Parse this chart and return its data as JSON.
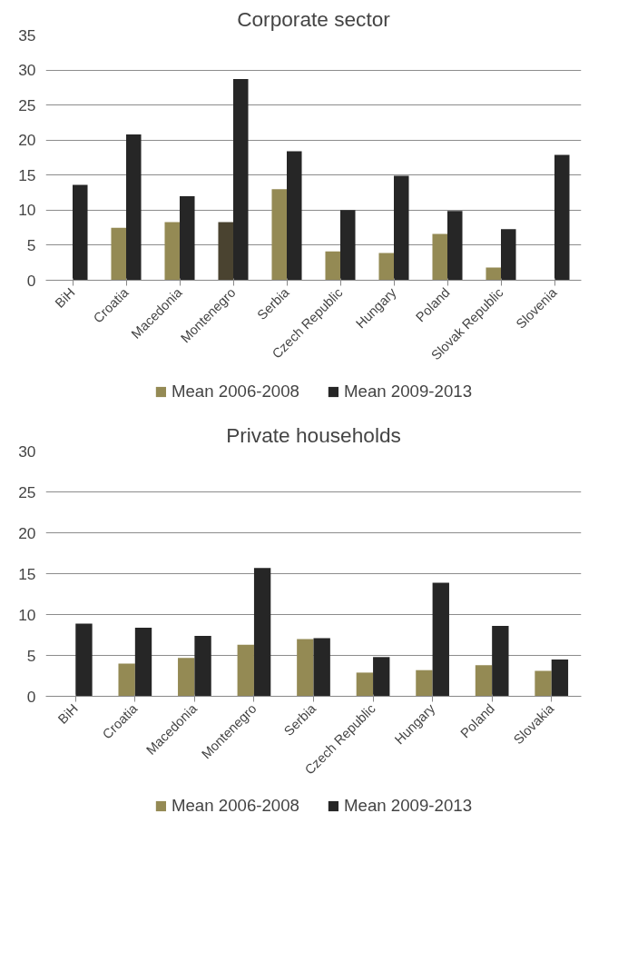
{
  "chart_data": [
    {
      "type": "bar",
      "title": "Corporate sector",
      "categories": [
        "BiH",
        "Croatia",
        "Macedonia",
        "Montenegro",
        "Serbia",
        "Czech Republic",
        "Hungary",
        "Poland",
        "Slovak Republic",
        "Slovenia"
      ],
      "series": [
        {
          "name": "Mean 2006-2008",
          "color": "#948a54",
          "colors": [
            "#948a54",
            "#948a54",
            "#948a54",
            "#4a4330",
            "#948a54",
            "#948a54",
            "#948a54",
            "#948a54",
            "#948a54",
            "#948a54"
          ],
          "values": [
            null,
            7.5,
            8.3,
            8.3,
            13,
            4.1,
            3.9,
            6.6,
            1.8,
            null
          ]
        },
        {
          "name": "Mean 2009-2013",
          "color": "#262626",
          "values": [
            13.6,
            20.8,
            12,
            28.7,
            18.4,
            10,
            14.9,
            9.9,
            7.3,
            17.9
          ]
        }
      ],
      "ylim": [
        0,
        35
      ],
      "yticks": [
        0,
        5,
        10,
        15,
        20,
        25,
        30,
        35
      ],
      "grid": "y",
      "legend": "bottom"
    },
    {
      "type": "bar",
      "title": "Private households",
      "categories": [
        "BiH",
        "Croatia",
        "Macedonia",
        "Montenegro",
        "Serbia",
        "Czech Republic",
        "Hungary",
        "Poland",
        "Slovakia"
      ],
      "series": [
        {
          "name": "Mean 2006-2008",
          "color": "#948a54",
          "values": [
            null,
            4,
            4.7,
            6.3,
            7,
            2.9,
            3.2,
            3.8,
            3.1
          ]
        },
        {
          "name": "Mean 2009-2013",
          "color": "#262626",
          "values": [
            8.9,
            8.4,
            7.4,
            15.7,
            7.1,
            4.8,
            13.9,
            8.6,
            4.5
          ]
        }
      ],
      "ylim": [
        0,
        30
      ],
      "yticks": [
        0,
        5,
        10,
        15,
        20,
        25,
        30
      ],
      "grid": "y",
      "legend": "bottom"
    }
  ]
}
